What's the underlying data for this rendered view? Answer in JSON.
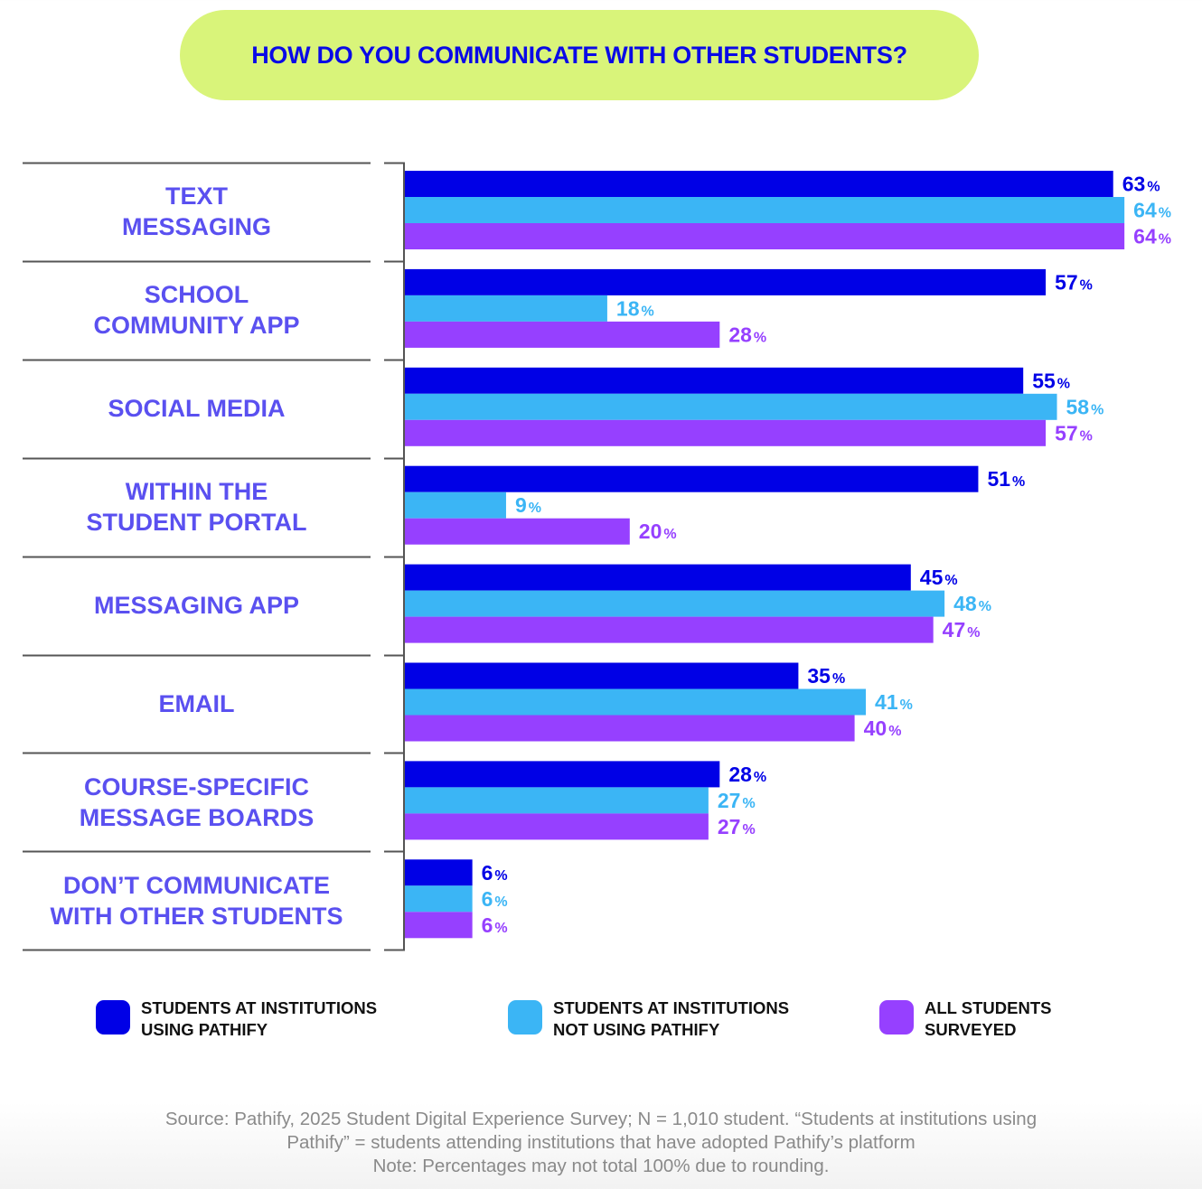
{
  "title": "HOW DO YOU COMMUNICATE WITH OTHER STUDENTS?",
  "colors": {
    "series_using": "#0000e6",
    "series_not_using": "#3bb5f5",
    "series_all": "#9640ff",
    "category_label": "#5a50f0",
    "title_bg": "#d9f47a",
    "title_text": "#0a0ae6",
    "axis": "#555555"
  },
  "chart_data": {
    "type": "bar",
    "orientation": "horizontal",
    "title": "HOW DO YOU COMMUNICATE WITH OTHER STUDENTS?",
    "xlabel": "",
    "ylabel": "",
    "xlim": [
      0,
      100
    ],
    "unit": "%",
    "grid": false,
    "legend_position": "bottom",
    "categories": [
      [
        "TEXT",
        "MESSAGING"
      ],
      [
        "SCHOOL",
        "COMMUNITY APP"
      ],
      [
        "SOCIAL MEDIA"
      ],
      [
        "WITHIN THE",
        "STUDENT PORTAL"
      ],
      [
        "MESSAGING APP"
      ],
      [
        "EMAIL"
      ],
      [
        "COURSE-SPECIFIC",
        "MESSAGE BOARDS"
      ],
      [
        "DON’T COMMUNICATE",
        "WITH OTHER STUDENTS"
      ]
    ],
    "series": [
      {
        "name": "STUDENTS AT INSTITUTIONS USING PATHIFY",
        "color": "#0000e6",
        "values": [
          63,
          57,
          55,
          51,
          45,
          35,
          28,
          6
        ]
      },
      {
        "name": "STUDENTS AT INSTITUTIONS NOT USING PATHIFY",
        "color": "#3bb5f5",
        "values": [
          64,
          18,
          58,
          9,
          48,
          41,
          27,
          6
        ]
      },
      {
        "name": "ALL STUDENTS SURVEYED",
        "color": "#9640ff",
        "values": [
          64,
          28,
          57,
          20,
          47,
          40,
          27,
          6
        ]
      }
    ]
  },
  "legend": [
    {
      "lines": [
        "STUDENTS AT INSTITUTIONS",
        "USING PATHIFY"
      ],
      "color": "#0000e6"
    },
    {
      "lines": [
        "STUDENTS AT INSTITUTIONS",
        "NOT USING PATHIFY"
      ],
      "color": "#3bb5f5"
    },
    {
      "lines": [
        "ALL STUDENTS",
        "SURVEYED"
      ],
      "color": "#9640ff"
    }
  ],
  "footer": {
    "line1": "Source: Pathify, 2025 Student Digital Experience Survey; N = 1,010 student. “Students at institutions using",
    "line2": "Pathify” = students attending institutions that have adopted Pathify’s platform",
    "line3": "Note: Percentages may not total 100% due to rounding."
  }
}
